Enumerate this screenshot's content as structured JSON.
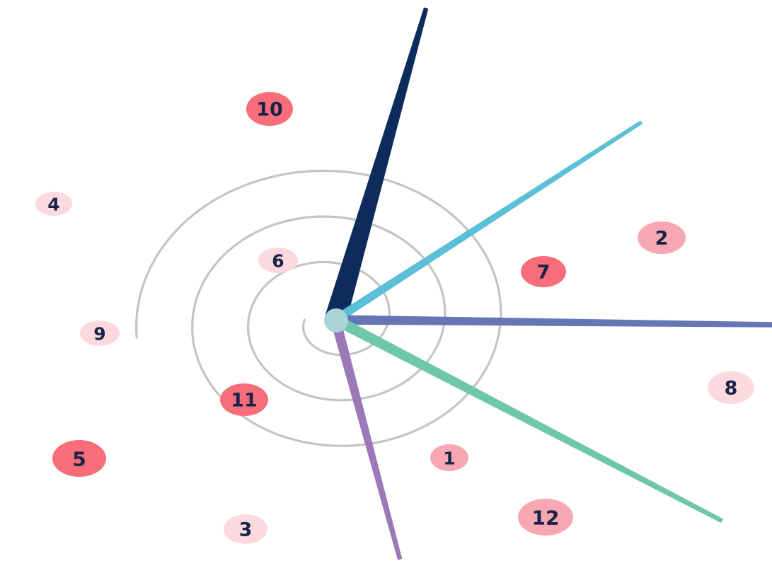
{
  "colors": {
    "background": "#ffffff",
    "spiral": "#c4c4c4",
    "hub": "#a9d4d8",
    "text": "#16244a",
    "badge_pale": "#fcd9de",
    "badge_light": "#f7a7b1",
    "badge_strong": "#f76d7a"
  },
  "hands": [
    {
      "name": "navy-hand",
      "color": "#0d2c5c"
    },
    {
      "name": "sky-blue-hand",
      "color": "#5bbfd7"
    },
    {
      "name": "indigo-hand",
      "color": "#6676b5"
    },
    {
      "name": "mint-hand",
      "color": "#6fc7ab"
    },
    {
      "name": "violet-hand",
      "color": "#9b79b7"
    }
  ],
  "numbers": [
    {
      "label": "10",
      "tone": "strong"
    },
    {
      "label": "4",
      "tone": "pale"
    },
    {
      "label": "6",
      "tone": "pale"
    },
    {
      "label": "7",
      "tone": "strong"
    },
    {
      "label": "2",
      "tone": "light"
    },
    {
      "label": "9",
      "tone": "pale"
    },
    {
      "label": "11",
      "tone": "strong"
    },
    {
      "label": "8",
      "tone": "pale"
    },
    {
      "label": "1",
      "tone": "light"
    },
    {
      "label": "5",
      "tone": "strong"
    },
    {
      "label": "3",
      "tone": "pale"
    },
    {
      "label": "12",
      "tone": "light"
    }
  ]
}
